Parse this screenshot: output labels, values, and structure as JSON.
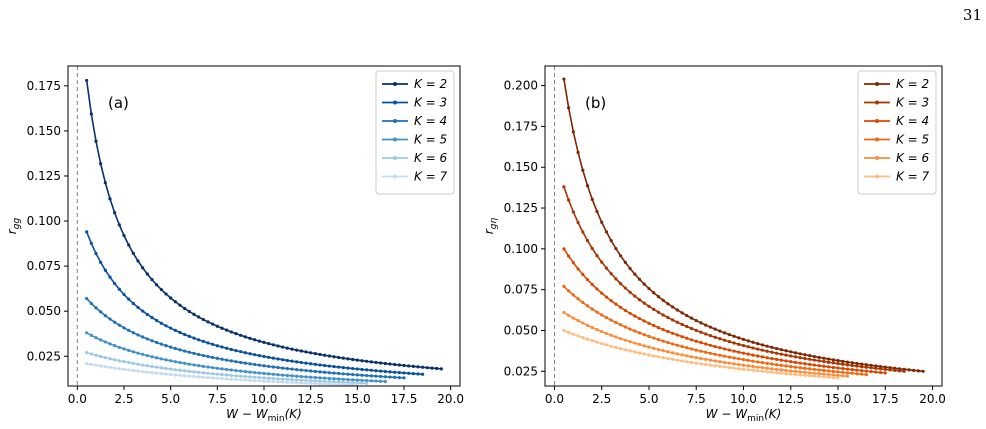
{
  "page": {
    "number": "31"
  },
  "chart_data": [
    {
      "type": "line",
      "panel_label": "(a)",
      "xlabel": "W − W_min(K)",
      "ylabel": "r_gg",
      "xlim": [
        -0.5,
        20.5
      ],
      "ylim": [
        0.0085,
        0.186
      ],
      "xticks": [
        0.0,
        2.5,
        5.0,
        7.5,
        10.0,
        12.5,
        15.0,
        17.5,
        20.0
      ],
      "xtick_labels": [
        "0.0",
        "2.5",
        "5.0",
        "7.5",
        "10.0",
        "12.5",
        "15.0",
        "17.5",
        "20.0"
      ],
      "yticks": [
        0.025,
        0.05,
        0.075,
        0.1,
        0.125,
        0.15,
        0.175
      ],
      "ytick_labels": [
        "0.025",
        "0.050",
        "0.075",
        "0.100",
        "0.125",
        "0.150",
        "0.175"
      ],
      "vline_x": 0.0,
      "legend_position": "upper-right",
      "series": [
        {
          "name": "K = 2",
          "color": "#08306b",
          "x_start": 0.5,
          "x_end": 19.5,
          "y_start": 0.178,
          "y_end": 0.018
        },
        {
          "name": "K = 3",
          "color": "#08519c",
          "x_start": 0.5,
          "x_end": 18.5,
          "y_start": 0.094,
          "y_end": 0.015
        },
        {
          "name": "K = 4",
          "color": "#2171b5",
          "x_start": 0.5,
          "x_end": 17.5,
          "y_start": 0.057,
          "y_end": 0.013
        },
        {
          "name": "K = 5",
          "color": "#4292c6",
          "x_start": 0.5,
          "x_end": 16.5,
          "y_start": 0.038,
          "y_end": 0.011
        },
        {
          "name": "K = 6",
          "color": "#9ecae1",
          "x_start": 0.5,
          "x_end": 15.5,
          "y_start": 0.027,
          "y_end": 0.01
        },
        {
          "name": "K = 7",
          "color": "#c6dbef",
          "x_start": 0.5,
          "x_end": 15.0,
          "y_start": 0.021,
          "y_end": 0.009
        }
      ]
    },
    {
      "type": "line",
      "panel_label": "(b)",
      "xlabel": "W − W_min(K)",
      "ylabel": "r_gη",
      "xlim": [
        -0.5,
        20.5
      ],
      "ylim": [
        0.016,
        0.212
      ],
      "xticks": [
        0.0,
        2.5,
        5.0,
        7.5,
        10.0,
        12.5,
        15.0,
        17.5,
        20.0
      ],
      "xtick_labels": [
        "0.0",
        "2.5",
        "5.0",
        "7.5",
        "10.0",
        "12.5",
        "15.0",
        "17.5",
        "20.0"
      ],
      "yticks": [
        0.025,
        0.05,
        0.075,
        0.1,
        0.125,
        0.15,
        0.175,
        0.2
      ],
      "ytick_labels": [
        "0.025",
        "0.050",
        "0.075",
        "0.100",
        "0.125",
        "0.150",
        "0.175",
        "0.200"
      ],
      "vline_x": 0.0,
      "legend_position": "upper-right",
      "series": [
        {
          "name": "K = 2",
          "color": "#7f2704",
          "x_start": 0.5,
          "x_end": 19.5,
          "y_start": 0.204,
          "y_end": 0.025
        },
        {
          "name": "K = 3",
          "color": "#a63603",
          "x_start": 0.5,
          "x_end": 18.5,
          "y_start": 0.138,
          "y_end": 0.025
        },
        {
          "name": "K = 4",
          "color": "#d94801",
          "x_start": 0.5,
          "x_end": 17.5,
          "y_start": 0.1,
          "y_end": 0.024
        },
        {
          "name": "K = 5",
          "color": "#f16913",
          "x_start": 0.5,
          "x_end": 16.5,
          "y_start": 0.077,
          "y_end": 0.023
        },
        {
          "name": "K = 6",
          "color": "#fd8d3c",
          "x_start": 0.5,
          "x_end": 15.5,
          "y_start": 0.061,
          "y_end": 0.022
        },
        {
          "name": "K = 7",
          "color": "#fdbe85",
          "x_start": 0.5,
          "x_end": 15.0,
          "y_start": 0.05,
          "y_end": 0.021
        }
      ]
    }
  ]
}
